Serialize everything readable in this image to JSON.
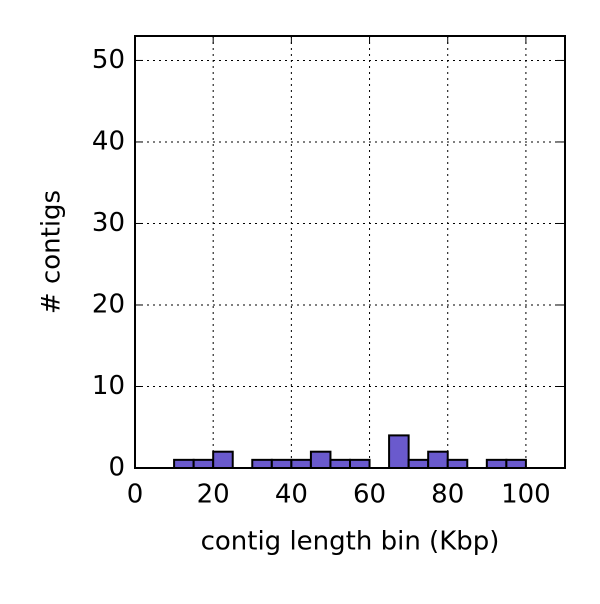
{
  "chart_data": {
    "type": "histogram",
    "x_label": "contig length bin (Kbp)",
    "y_label": "# contigs",
    "bins": [
      0,
      5,
      10,
      15,
      20,
      25,
      30,
      35,
      40,
      45,
      50,
      55,
      60,
      65,
      70,
      75,
      80,
      85,
      90,
      95,
      100
    ],
    "values": [
      0,
      0,
      1,
      1,
      2,
      0,
      1,
      1,
      1,
      2,
      1,
      1,
      0,
      4,
      1,
      2,
      1,
      0,
      1,
      1
    ],
    "color": "#6a5acd",
    "xlim": [
      0,
      110
    ],
    "xticks": [
      0,
      20,
      40,
      60,
      80,
      100
    ],
    "ylim": [
      0,
      53
    ],
    "yticks": [
      0,
      10,
      20,
      30,
      40,
      50
    ],
    "grid": true
  }
}
